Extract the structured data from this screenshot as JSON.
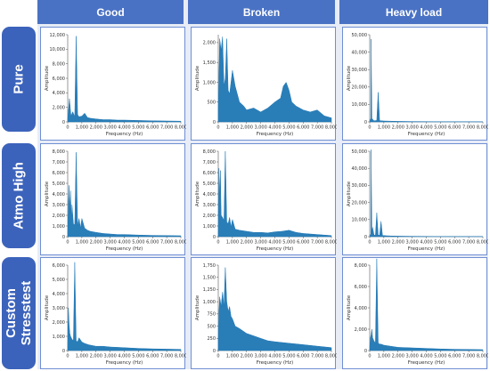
{
  "columns": [
    "Good",
    "Broken",
    "Heavy load"
  ],
  "rows": [
    "Pure",
    "Atmo High",
    "Custom Stresstest"
  ],
  "colors": {
    "header": "#4a72c4",
    "row_header": "#3c63bb",
    "grid_background": "#e7ecf6",
    "panel_border": "#6f8fd3",
    "series": "#1f77b4"
  },
  "chart_data": [
    {
      "row": "Pure",
      "column": "Good",
      "type": "area",
      "xlabel": "Frequency (Hz)",
      "ylabel": "Amplitude",
      "xlim": [
        0,
        8000
      ],
      "ylim": [
        0,
        12000
      ],
      "xticks": [
        "0",
        "1,000",
        "2,000",
        "3,000",
        "4,000",
        "5,000",
        "6,000",
        "7,000",
        "8,000"
      ],
      "yticks": [
        "0",
        "2,000",
        "4,000",
        "6,000",
        "8,000",
        "10,000",
        "12,000"
      ],
      "series": [
        {
          "x": [
            0,
            120,
            230,
            350,
            500,
            600,
            700,
            800,
            1000,
            1200,
            1400,
            1600,
            2000,
            2500,
            3000,
            3500,
            4000,
            5000,
            6000,
            7000,
            8000
          ],
          "values": [
            400,
            3200,
            800,
            1400,
            700,
            11800,
            1000,
            700,
            800,
            1200,
            600,
            500,
            400,
            300,
            300,
            250,
            250,
            200,
            150,
            120,
            100
          ]
        }
      ]
    },
    {
      "row": "Pure",
      "column": "Broken",
      "type": "area",
      "xlabel": "Frequency (Hz)",
      "ylabel": "Amplitude",
      "xlim": [
        0,
        8000
      ],
      "ylim": [
        0,
        2200
      ],
      "xticks": [
        "0",
        "1,000",
        "2,000",
        "3,000",
        "4,000",
        "5,000",
        "6,000",
        "7,000",
        "8,000"
      ],
      "yticks": [
        "0",
        "500",
        "1,000",
        "1,500",
        "2,000"
      ],
      "series": [
        {
          "x": [
            0,
            100,
            200,
            300,
            400,
            500,
            600,
            700,
            800,
            900,
            1000,
            1200,
            1500,
            1800,
            2000,
            2500,
            3000,
            3500,
            4000,
            4400,
            4600,
            4800,
            5000,
            5200,
            5500,
            6000,
            6500,
            7000,
            7500,
            8000
          ],
          "values": [
            300,
            2100,
            1800,
            2150,
            900,
            1100,
            2100,
            800,
            700,
            1000,
            1300,
            900,
            500,
            400,
            300,
            350,
            250,
            350,
            500,
            600,
            900,
            1000,
            800,
            500,
            400,
            300,
            250,
            300,
            150,
            100
          ]
        }
      ]
    },
    {
      "row": "Pure",
      "column": "Heavy load",
      "type": "area",
      "xlabel": "Frequency (Hz)",
      "ylabel": "Amplitude",
      "xlim": [
        0,
        8000
      ],
      "ylim": [
        0,
        50000
      ],
      "xticks": [
        "0",
        "1,000",
        "2,000",
        "3,000",
        "4,000",
        "5,000",
        "6,000",
        "7,000",
        "8,000"
      ],
      "yticks": [
        "0",
        "10,000",
        "20,000",
        "30,000",
        "40,000",
        "50,000"
      ],
      "series": [
        {
          "x": [
            0,
            80,
            100,
            150,
            300,
            500,
            600,
            700,
            1000,
            1500,
            2000,
            3000,
            4000,
            5000,
            6000,
            7000,
            8000
          ],
          "values": [
            500,
            2000,
            47500,
            2000,
            600,
            800,
            17000,
            700,
            500,
            400,
            300,
            200,
            150,
            120,
            100,
            80,
            60
          ]
        }
      ]
    },
    {
      "row": "Atmo High",
      "column": "Good",
      "type": "area",
      "xlabel": "Frequency (Hz)",
      "ylabel": "Amplitude",
      "xlim": [
        0,
        8000
      ],
      "ylim": [
        0,
        8000
      ],
      "xticks": [
        "0",
        "1,000",
        "2,000",
        "3,000",
        "4,000",
        "5,000",
        "6,000",
        "7,000",
        "8,000"
      ],
      "yticks": [
        "0",
        "1,000",
        "2,000",
        "3,000",
        "4,000",
        "5,000",
        "6,000",
        "7,000",
        "8,000"
      ],
      "series": [
        {
          "x": [
            0,
            50,
            100,
            150,
            200,
            250,
            300,
            400,
            500,
            600,
            700,
            800,
            900,
            1000,
            1200,
            1400,
            1600,
            2000,
            2500,
            3000,
            3500,
            4000,
            5000,
            6000,
            7000,
            8000
          ],
          "values": [
            300,
            3200,
            4800,
            2200,
            4300,
            1500,
            3000,
            1200,
            1100,
            7900,
            1000,
            1700,
            800,
            1700,
            800,
            600,
            500,
            400,
            300,
            250,
            200,
            200,
            150,
            120,
            100,
            80
          ]
        }
      ]
    },
    {
      "row": "Atmo High",
      "column": "Broken",
      "type": "area",
      "xlabel": "Frequency (Hz)",
      "ylabel": "Amplitude",
      "xlim": [
        0,
        8000
      ],
      "ylim": [
        0,
        8000
      ],
      "xticks": [
        "0",
        "1,000",
        "2,000",
        "3,000",
        "4,000",
        "5,000",
        "6,000",
        "7,000",
        "8,000"
      ],
      "yticks": [
        "0",
        "1,000",
        "2,000",
        "3,000",
        "4,000",
        "5,000",
        "6,000",
        "7,000",
        "8,000"
      ],
      "series": [
        {
          "x": [
            0,
            50,
            100,
            150,
            200,
            300,
            400,
            500,
            600,
            700,
            800,
            900,
            1000,
            1200,
            1500,
            2000,
            2500,
            3000,
            3500,
            4000,
            4500,
            5000,
            5500,
            6000,
            7000,
            8000
          ],
          "values": [
            300,
            6400,
            3500,
            6200,
            2000,
            1800,
            1500,
            8000,
            1400,
            1200,
            1800,
            900,
            1600,
            700,
            600,
            500,
            400,
            400,
            350,
            450,
            500,
            600,
            400,
            300,
            200,
            100
          ]
        }
      ]
    },
    {
      "row": "Atmo High",
      "column": "Heavy load",
      "type": "area",
      "xlabel": "Frequency (Hz)",
      "ylabel": "Amplitude",
      "xlim": [
        0,
        8000
      ],
      "ylim": [
        0,
        50000
      ],
      "xticks": [
        "0",
        "1,000",
        "2,000",
        "3,000",
        "4,000",
        "5,000",
        "6,000",
        "7,000",
        "8,000"
      ],
      "yticks": [
        "0",
        "10,000",
        "20,000",
        "30,000",
        "40,000",
        "50,000"
      ],
      "series": [
        {
          "x": [
            0,
            80,
            100,
            150,
            200,
            300,
            400,
            500,
            600,
            700,
            800,
            900,
            1000,
            1200,
            1500,
            2000,
            3000,
            4000,
            5000,
            6000,
            7000,
            8000
          ],
          "values": [
            500,
            1500,
            51000,
            2000,
            5500,
            1000,
            800,
            14000,
            900,
            800,
            9000,
            700,
            600,
            500,
            400,
            300,
            200,
            150,
            120,
            100,
            80,
            60
          ]
        }
      ]
    },
    {
      "row": "Custom Stresstest",
      "column": "Good",
      "type": "area",
      "xlabel": "Frequency (Hz)",
      "ylabel": "Amplitude",
      "xlim": [
        0,
        8000
      ],
      "ylim": [
        0,
        6000
      ],
      "xticks": [
        "0",
        "1,000",
        "2,000",
        "3,000",
        "4,000",
        "5,000",
        "6,000",
        "7,000",
        "8,000"
      ],
      "yticks": [
        "0",
        "1,000",
        "2,000",
        "3,000",
        "4,000",
        "5,000",
        "6,000"
      ],
      "series": [
        {
          "x": [
            0,
            50,
            100,
            150,
            200,
            300,
            400,
            500,
            600,
            700,
            800,
            1000,
            1200,
            1500,
            2000,
            2500,
            3000,
            4000,
            5000,
            6000,
            7000,
            8000
          ],
          "values": [
            300,
            3000,
            1800,
            1200,
            1000,
            800,
            700,
            6200,
            700,
            600,
            900,
            600,
            500,
            400,
            300,
            300,
            250,
            200,
            150,
            120,
            100,
            80
          ]
        }
      ]
    },
    {
      "row": "Custom Stresstest",
      "column": "Broken",
      "type": "area",
      "xlabel": "Frequency (Hz)",
      "ylabel": "Amplitude",
      "xlim": [
        0,
        8000
      ],
      "ylim": [
        0,
        1750
      ],
      "xticks": [
        "0",
        "1,000",
        "2,000",
        "3,000",
        "4,000",
        "5,000",
        "6,000",
        "7,000",
        "8,000"
      ],
      "yticks": [
        "0",
        "250",
        "500",
        "750",
        "1,000",
        "1,250",
        "1,500",
        "1,750"
      ],
      "series": [
        {
          "x": [
            0,
            50,
            100,
            200,
            300,
            400,
            500,
            600,
            700,
            800,
            900,
            1000,
            1200,
            1500,
            2000,
            2500,
            3000,
            3500,
            4000,
            5000,
            6000,
            7000,
            8000
          ],
          "values": [
            200,
            800,
            1100,
            900,
            1200,
            900,
            1700,
            1000,
            800,
            900,
            700,
            650,
            500,
            450,
            350,
            300,
            250,
            200,
            180,
            150,
            120,
            90,
            60
          ]
        }
      ]
    },
    {
      "row": "Custom Stresstest",
      "column": "Heavy load",
      "type": "area",
      "xlabel": "Frequency (Hz)",
      "ylabel": "Amplitude",
      "xlim": [
        0,
        8000
      ],
      "ylim": [
        0,
        8000
      ],
      "xticks": [
        "0",
        "1,000",
        "2,000",
        "3,000",
        "4,000",
        "5,000",
        "6,000",
        "7,000",
        "8,000"
      ],
      "yticks": [
        "0",
        "2,000",
        "4,000",
        "6,000",
        "8,000"
      ],
      "series": [
        {
          "x": [
            0,
            50,
            100,
            150,
            200,
            300,
            400,
            500,
            600,
            700,
            800,
            1000,
            1500,
            2000,
            3000,
            4000,
            5000,
            6000,
            7000,
            8000
          ],
          "values": [
            300,
            1200,
            1500,
            2000,
            1200,
            900,
            700,
            8600,
            700,
            600,
            600,
            500,
            400,
            300,
            250,
            200,
            150,
            120,
            100,
            80
          ]
        }
      ]
    }
  ]
}
